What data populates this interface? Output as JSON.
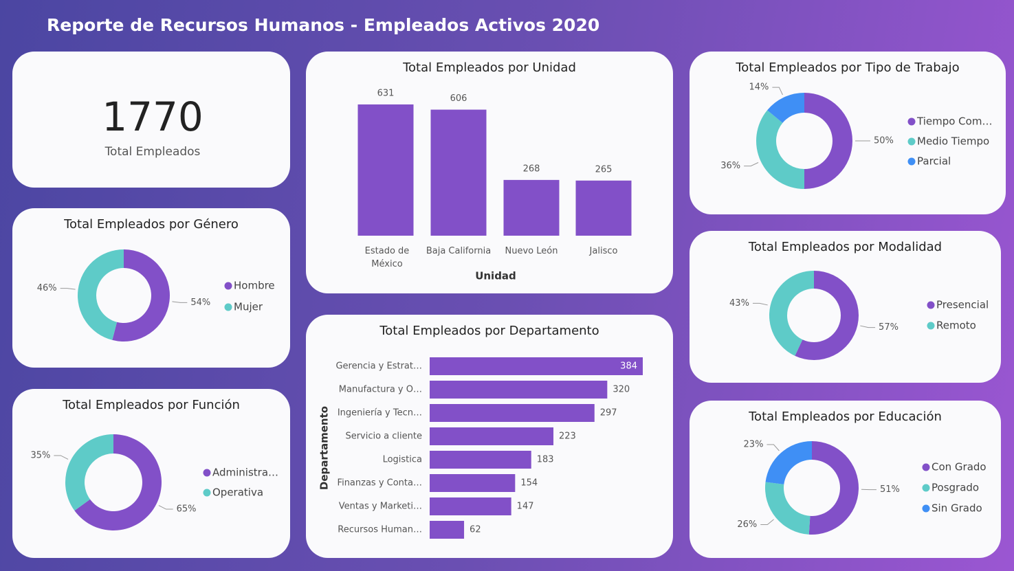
{
  "title": "Reporte de Recursos Humanos - Empleados Activos 2020",
  "kpi": {
    "value": 1770,
    "label": "Total Empleados"
  },
  "chart_data": [
    {
      "type": "bar",
      "title": "Total Empleados por Unidad",
      "x_label": "Unidad",
      "categories": [
        "Estado de México",
        "Baja California",
        "Nuevo León",
        "Jalisco"
      ],
      "values": [
        631,
        606,
        268,
        265
      ],
      "color": "#8250c8"
    },
    {
      "type": "bar",
      "orientation": "horizontal",
      "title": "Total Empleados por Departamento",
      "y_label": "Departamento",
      "categories": [
        "Gerencia y Estrat…",
        "Manufactura y O…",
        "Ingeniería y Tecn…",
        "Servicio a cliente",
        "Logistica",
        "Finanzas y Conta…",
        "Ventas y Marketi…",
        "Recursos Human…"
      ],
      "values": [
        384,
        320,
        297,
        223,
        183,
        154,
        147,
        62
      ],
      "color": "#8250c8"
    },
    {
      "type": "pie",
      "donut": true,
      "title": "Total Empleados por Género",
      "categories": [
        "Hombre",
        "Mujer"
      ],
      "values": [
        54,
        46
      ],
      "value_labels": [
        "54%",
        "46%"
      ],
      "colors": [
        "#8250c8",
        "#5ecbc8"
      ]
    },
    {
      "type": "pie",
      "donut": true,
      "title": "Total Empleados por Función",
      "categories": [
        "Administra…",
        "Operativa"
      ],
      "values": [
        65,
        35
      ],
      "value_labels": [
        "65%",
        "35%"
      ],
      "colors": [
        "#8250c8",
        "#5ecbc8"
      ]
    },
    {
      "type": "pie",
      "donut": true,
      "title": "Total Empleados por Tipo de Trabajo",
      "categories": [
        "Tiempo Com…",
        "Medio Tiempo",
        "Parcial"
      ],
      "values": [
        50,
        36,
        14
      ],
      "value_labels": [
        "50%",
        "36%",
        "14%"
      ],
      "colors": [
        "#8250c8",
        "#5ecbc8",
        "#3f8ff5"
      ]
    },
    {
      "type": "pie",
      "donut": true,
      "title": "Total Empleados por Modalidad",
      "categories": [
        "Presencial",
        "Remoto"
      ],
      "values": [
        57,
        43
      ],
      "value_labels": [
        "57%",
        "43%"
      ],
      "colors": [
        "#8250c8",
        "#5ecbc8"
      ]
    },
    {
      "type": "pie",
      "donut": true,
      "title": "Total Empleados por Educación",
      "categories": [
        "Con Grado",
        "Posgrado",
        "Sin Grado"
      ],
      "values": [
        51,
        26,
        23
      ],
      "value_labels": [
        "51%",
        "26%",
        "23%"
      ],
      "colors": [
        "#8250c8",
        "#5ecbc8",
        "#3f8ff5"
      ]
    }
  ]
}
